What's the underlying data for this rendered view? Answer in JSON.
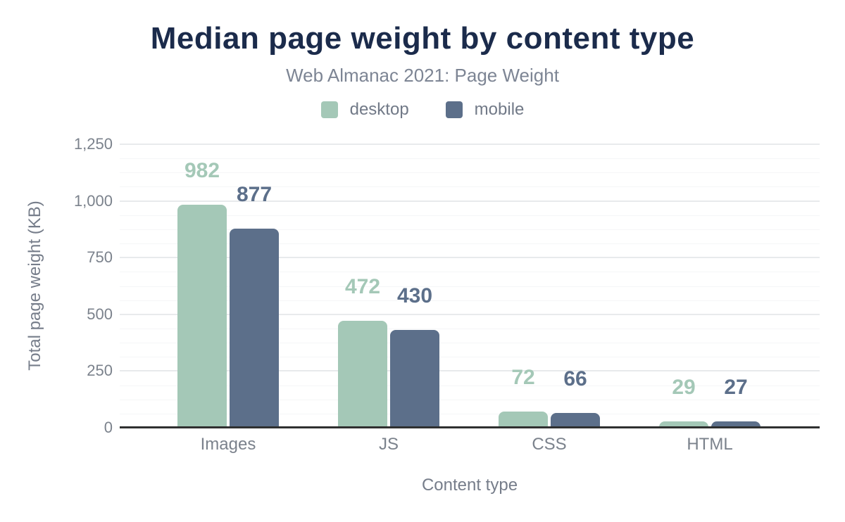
{
  "header": {
    "title": "Median page weight by content type",
    "subtitle": "Web Almanac 2021: Page Weight"
  },
  "chart_data": {
    "type": "bar",
    "title": "Median page weight by content type",
    "subtitle": "Web Almanac 2021: Page Weight",
    "categories": [
      "Images",
      "JS",
      "CSS",
      "HTML"
    ],
    "series": [
      {
        "name": "desktop",
        "color": "#a4c8b7",
        "values": [
          982,
          472,
          72,
          29
        ]
      },
      {
        "name": "mobile",
        "color": "#5c6f8a",
        "values": [
          877,
          430,
          66,
          27
        ]
      }
    ],
    "xlabel": "Content type",
    "ylabel": "Total page weight (KB)",
    "ylim": [
      0,
      1250
    ],
    "ytick_values": [
      0,
      250,
      500,
      750,
      1000,
      1250
    ],
    "ytick_labels": [
      "0",
      "250",
      "500",
      "750",
      "1,000",
      "1,250"
    ],
    "yminor_step": 62.5,
    "grid": true,
    "minor_grid": true,
    "legend_position": "top",
    "data_labels": true,
    "colors": {
      "title": "#1b2b4b",
      "subtitle": "#7d8594",
      "axis_text": "#7b828c",
      "axis_line": "#2f3030",
      "major_grid": "#e8eaec",
      "minor_grid": "#f5f6f7",
      "background": "#ffffff"
    }
  }
}
